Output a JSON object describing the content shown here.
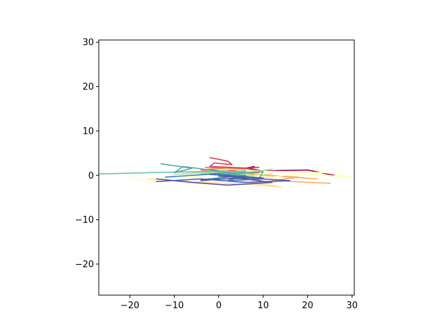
{
  "chart_data": {
    "type": "line",
    "title": "",
    "xlabel": "",
    "ylabel": "",
    "xlim": [
      -27,
      30.5
    ],
    "ylim": [
      -27,
      30.5
    ],
    "xticks": [
      -20,
      -10,
      0,
      10,
      20,
      30
    ],
    "yticks": [
      -20,
      -10,
      0,
      10,
      20,
      30
    ],
    "xtick_labels": [
      "−20",
      "−10",
      "0",
      "10",
      "20",
      "30"
    ],
    "ytick_labels": [
      "−20",
      "−10",
      "0",
      "10",
      "20",
      "30"
    ],
    "grid": false,
    "legend": "none",
    "series": [
      {
        "color": "#9e0142",
        "x": [
          26,
          20,
          10,
          6,
          8
        ],
        "y": [
          0,
          1.2,
          1.0,
          1.6,
          2.0
        ]
      },
      {
        "color": "#d53e4f",
        "x": [
          -2,
          2,
          3,
          -1,
          -2,
          7,
          9,
          0
        ],
        "y": [
          4,
          3.2,
          2.4,
          2.8,
          2.0,
          1.6,
          1.8,
          1.2
        ]
      },
      {
        "color": "#f46d43",
        "x": [
          -3,
          6,
          2,
          9,
          -4,
          1
        ],
        "y": [
          1.8,
          1.4,
          1.0,
          0.6,
          1.2,
          1.6
        ]
      },
      {
        "color": "#fdae61",
        "x": [
          25,
          12,
          18,
          7,
          22,
          4,
          10
        ],
        "y": [
          -1.8,
          -1.2,
          -0.4,
          0.2,
          -0.8,
          0.6,
          -1.4
        ]
      },
      {
        "color": "#fee08b",
        "x": [
          -16,
          -6,
          6,
          14,
          3,
          12,
          -2,
          10
        ],
        "y": [
          -0.8,
          -1.4,
          -2.0,
          -2.6,
          -1.0,
          -0.4,
          0.4,
          0.8
        ]
      },
      {
        "color": "#ffffbf",
        "x": [
          -20,
          -16,
          -12,
          0,
          12,
          18,
          30,
          24,
          8
        ],
        "y": [
          0,
          -1.6,
          -0.6,
          0.2,
          -0.4,
          0.4,
          -0.4,
          0.6,
          1.0
        ]
      },
      {
        "color": "#e6f598",
        "x": [
          -4,
          4,
          10,
          2,
          -6,
          6,
          12
        ],
        "y": [
          0.8,
          0.2,
          1.0,
          1.4,
          0.6,
          -0.2,
          0.4
        ]
      },
      {
        "color": "#abdda4",
        "x": [
          -10,
          0,
          8,
          -2,
          6,
          12
        ],
        "y": [
          0.2,
          0.8,
          -0.2,
          1.2,
          0.6,
          1.4
        ]
      },
      {
        "color": "#66c2a5",
        "x": [
          -27,
          -12,
          0,
          8,
          -4,
          6,
          2
        ],
        "y": [
          0.3,
          0.7,
          0.9,
          0.5,
          0.2,
          1.0,
          -0.4
        ]
      },
      {
        "color": "#5aa7a4",
        "x": [
          -13,
          -6,
          -10,
          -8,
          4,
          10,
          9,
          -2
        ],
        "y": [
          2.6,
          1.6,
          0.6,
          2.0,
          0.4,
          0.8,
          -0.8,
          1.4
        ]
      },
      {
        "color": "#3288bd",
        "x": [
          -12,
          0,
          8,
          -4,
          6,
          2,
          10
        ],
        "y": [
          -0.4,
          0.4,
          -0.6,
          -1.0,
          0,
          -1.2,
          -0.8
        ]
      },
      {
        "color": "#4b60ad",
        "x": [
          -14,
          -4,
          6,
          16,
          0,
          10,
          -2
        ],
        "y": [
          -1.4,
          -0.8,
          -1.6,
          -1.2,
          -0.2,
          -0.6,
          0.2
        ]
      },
      {
        "color": "#5e4fa2",
        "x": [
          -14,
          -6,
          2,
          12,
          4,
          -4
        ],
        "y": [
          -0.8,
          -1.6,
          -2.2,
          -1.6,
          -0.6,
          -1.2
        ]
      }
    ]
  }
}
